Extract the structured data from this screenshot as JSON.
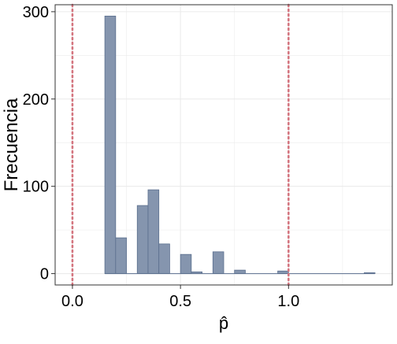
{
  "chart_data": {
    "type": "bar",
    "title": "",
    "xlabel": "p̂",
    "ylabel": "Frecuencia",
    "xlim": [
      -0.08,
      1.48
    ],
    "ylim": [
      -13,
      308
    ],
    "x_ticks": [
      0.0,
      0.5,
      1.0
    ],
    "x_tick_labels": [
      "0.0",
      "0.5",
      "1.0"
    ],
    "y_ticks": [
      0,
      100,
      200,
      300
    ],
    "y_tick_labels": [
      "0",
      "100",
      "200",
      "300"
    ],
    "bin_width": 0.05,
    "bin_starts": [
      0.0,
      0.05,
      0.1,
      0.15,
      0.2,
      0.25,
      0.3,
      0.35,
      0.4,
      0.45,
      0.5,
      0.55,
      0.6,
      0.65,
      0.7,
      0.75,
      0.8,
      0.85,
      0.9,
      0.95,
      1.0,
      1.05,
      1.1,
      1.15,
      1.2,
      1.25,
      1.3,
      1.35
    ],
    "values": [
      0,
      0,
      0,
      295,
      41,
      0,
      78,
      96,
      34,
      0,
      22,
      2,
      0,
      25,
      0,
      4,
      0,
      0,
      0,
      3,
      0,
      0,
      0,
      0,
      0,
      0,
      0,
      1
    ],
    "reference_lines_x": [
      0.0,
      1.0
    ],
    "grid": true,
    "legend": "none",
    "colors": {
      "bar_fill": "#8595ae",
      "bar_stroke": "#5b6f8e",
      "reference_line": "#d4757f",
      "grid": "#ebebeb",
      "axis_text": "#000000"
    }
  }
}
